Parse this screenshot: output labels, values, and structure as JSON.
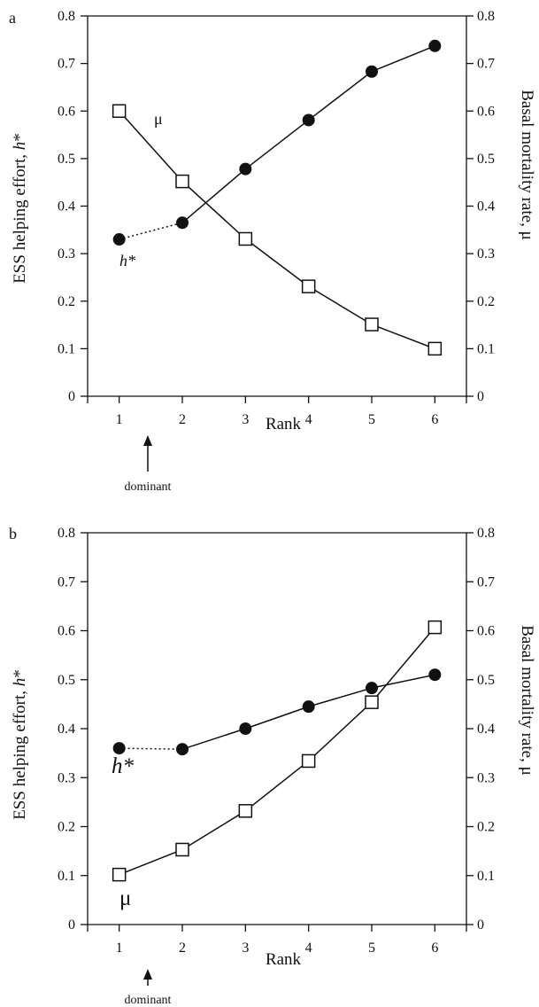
{
  "chart_data": [
    {
      "type": "line",
      "panel_label": "a",
      "x": [
        1,
        2,
        3,
        4,
        5,
        6
      ],
      "xlabel": "Rank",
      "xlim": [
        0.5,
        6.5
      ],
      "x_ticks": [
        "1",
        "2",
        "3",
        "4",
        "5",
        "6"
      ],
      "ylabel_left": "ESS helping effort, h*",
      "ylabel_right": "Basal mortality rate, μ",
      "ylim": [
        0,
        0.8
      ],
      "y_ticks": [
        "0",
        "0.1",
        "0.2",
        "0.3",
        "0.4",
        "0.5",
        "0.6",
        "0.7",
        "0.8"
      ],
      "grid": false,
      "series": [
        {
          "name": "h*",
          "marker": "filled-circle",
          "values": [
            0.33,
            0.365,
            0.478,
            0.581,
            0.683,
            0.737
          ],
          "dotted_first_segment": true
        },
        {
          "name": "μ",
          "marker": "open-square",
          "values": [
            0.6,
            0.452,
            0.331,
            0.231,
            0.151,
            0.1
          ],
          "dotted_first_segment": false
        }
      ],
      "annotations": {
        "arrow_label": "dominant",
        "series_labels": [
          "h*",
          "μ"
        ]
      }
    },
    {
      "type": "line",
      "panel_label": "b",
      "x": [
        1,
        2,
        3,
        4,
        5,
        6
      ],
      "xlabel": "Rank",
      "xlim": [
        0.5,
        6.5
      ],
      "x_ticks": [
        "1",
        "2",
        "3",
        "4",
        "5",
        "6"
      ],
      "ylabel_left": "ESS helping effort, h*",
      "ylabel_right": "Basal mortality rate, μ",
      "ylim": [
        0,
        0.8
      ],
      "y_ticks": [
        "0",
        "0.1",
        "0.2",
        "0.3",
        "0.4",
        "0.5",
        "0.6",
        "0.7",
        "0.8"
      ],
      "grid": false,
      "series": [
        {
          "name": "h*",
          "marker": "filled-circle",
          "values": [
            0.36,
            0.358,
            0.4,
            0.445,
            0.483,
            0.51
          ],
          "dotted_first_segment": true
        },
        {
          "name": "μ",
          "marker": "open-square",
          "values": [
            0.102,
            0.153,
            0.232,
            0.334,
            0.454,
            0.607
          ],
          "dotted_first_segment": false
        }
      ],
      "annotations": {
        "arrow_label": "dominant",
        "series_labels": [
          "h*",
          "μ"
        ]
      }
    }
  ]
}
